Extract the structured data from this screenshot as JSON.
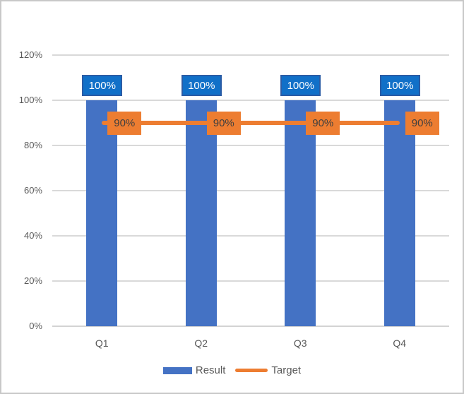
{
  "chart_data": {
    "type": "bar",
    "title": "",
    "xlabel": "",
    "ylabel": "",
    "categories": [
      "Q1",
      "Q2",
      "Q3",
      "Q4"
    ],
    "series": [
      {
        "name": "Result",
        "type": "bar",
        "values": [
          100,
          100,
          100,
          100
        ],
        "data_labels": [
          "100%",
          "100%",
          "100%",
          "100%"
        ],
        "color": "#4472c4",
        "label_fill": "#1170c8",
        "label_border": "#2b5ca5",
        "label_text_color": "#ffffff"
      },
      {
        "name": "Target",
        "type": "line",
        "values": [
          90,
          90,
          90,
          90
        ],
        "data_labels": [
          "90%",
          "90%",
          "90%",
          "90%"
        ],
        "color": "#ed7d31",
        "label_fill": "#ed7d31",
        "label_text_color": "#3f3f3f"
      }
    ],
    "ylim": [
      0,
      120
    ],
    "ytick_step": 20,
    "ytick_labels": [
      "0%",
      "20%",
      "40%",
      "60%",
      "80%",
      "100%",
      "120%"
    ],
    "grid": true,
    "legend_position": "bottom",
    "style": {
      "gridline_color": "#d9d9d9",
      "axis_line_color": "#d3d3d3",
      "axis_text_color": "#595959",
      "frame_border_color": "#c8c8c8",
      "background": "#ffffff"
    }
  }
}
